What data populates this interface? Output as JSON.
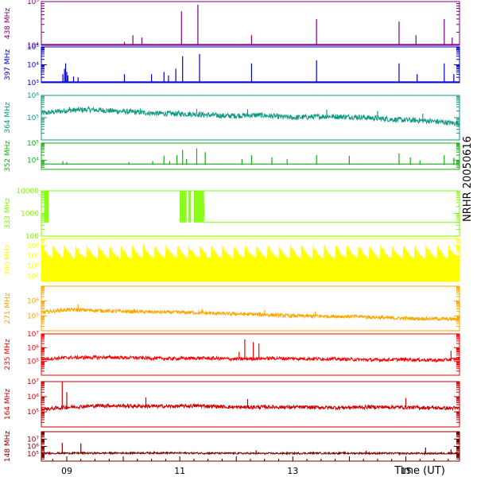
{
  "station": "NRHR 20050616",
  "time_axis": {
    "label": "Time (UT)",
    "range": [
      8.55,
      15.95
    ],
    "ticks": [
      {
        "t": 9,
        "label": "09"
      },
      {
        "t": 11,
        "label": "11"
      },
      {
        "t": 13,
        "label": "13"
      },
      {
        "t": 15,
        "label": "15"
      }
    ]
  },
  "chart_data": [
    {
      "type": "line",
      "freq_label": "438 MHz",
      "color": "#800080",
      "scale": "log",
      "ylim": [
        10000,
        100000
      ],
      "tick_labels": [
        {
          "v": 10000,
          "label": "10⁴"
        },
        {
          "v": 100000,
          "label": "10⁵"
        }
      ],
      "baseline": 10000,
      "spikes": [
        [
          10.02,
          12000
        ],
        [
          10.17,
          17000
        ],
        [
          10.33,
          15000
        ],
        [
          11.03,
          60000
        ],
        [
          11.32,
          85000
        ],
        [
          12.27,
          17000
        ],
        [
          13.42,
          40000
        ],
        [
          14.88,
          35000
        ],
        [
          15.18,
          17000
        ],
        [
          15.68,
          40000
        ],
        [
          15.82,
          15000
        ]
      ]
    },
    {
      "type": "line",
      "freq_label": "397 MHz",
      "color": "#0000cd",
      "scale": "log",
      "ylim": [
        1000,
        100000
      ],
      "tick_labels": [
        {
          "v": 1000,
          "label": "10³"
        },
        {
          "v": 10000,
          "label": "10⁴"
        },
        {
          "v": 100000,
          "label": "10⁵"
        }
      ],
      "baseline": 1000,
      "spikes": [
        [
          8.93,
          3000
        ],
        [
          8.96,
          6000
        ],
        [
          8.98,
          12000
        ],
        [
          9.0,
          4000
        ],
        [
          9.02,
          2500
        ],
        [
          9.12,
          2200
        ],
        [
          9.2,
          2000
        ],
        [
          10.02,
          3000
        ],
        [
          10.5,
          3000
        ],
        [
          10.72,
          4000
        ],
        [
          10.8,
          2500
        ],
        [
          10.93,
          6000
        ],
        [
          11.05,
          30000
        ],
        [
          11.35,
          40000
        ],
        [
          12.27,
          12000
        ],
        [
          13.42,
          18000
        ],
        [
          14.88,
          12000
        ],
        [
          15.2,
          3000
        ],
        [
          15.68,
          12000
        ],
        [
          15.85,
          3000
        ]
      ]
    },
    {
      "type": "line",
      "freq_label": "364 MHz",
      "color": "#0e9a83",
      "scale": "log",
      "ylim": [
        10000,
        1000000
      ],
      "tick_labels": [
        {
          "v": 100000,
          "label": "10⁵"
        },
        {
          "v": 1000000,
          "label": "10⁶"
        }
      ],
      "series": [
        {
          "x": [
            8.6,
            9.0,
            9.4,
            10.0,
            10.6,
            11.2,
            11.8,
            12.4,
            13.0,
            13.6,
            14.2,
            14.8,
            15.4,
            15.9
          ],
          "y": [
            160000,
            210000,
            230000,
            190000,
            155000,
            145000,
            120000,
            130000,
            100000,
            115000,
            105000,
            82000,
            72000,
            55000
          ]
        }
      ],
      "spikes": [
        [
          9.05,
          300000
        ],
        [
          9.6,
          280000
        ],
        [
          10.3,
          260000
        ],
        [
          11.3,
          250000
        ],
        [
          12.2,
          240000
        ],
        [
          13.6,
          230000
        ],
        [
          14.5,
          200000
        ],
        [
          15.3,
          150000
        ]
      ]
    },
    {
      "type": "line",
      "freq_label": "352 MHz",
      "color": "#10b010",
      "scale": "log",
      "ylim": [
        3000,
        100000
      ],
      "tick_labels": [
        {
          "v": 10000,
          "label": "10⁴"
        },
        {
          "v": 100000,
          "label": "10⁵"
        }
      ],
      "baseline": 5500,
      "spikes": [
        [
          8.93,
          9000
        ],
        [
          9.0,
          8000
        ],
        [
          10.1,
          8000
        ],
        [
          10.52,
          9000
        ],
        [
          10.72,
          18000
        ],
        [
          10.82,
          9000
        ],
        [
          10.95,
          20000
        ],
        [
          11.05,
          40000
        ],
        [
          11.12,
          12000
        ],
        [
          11.3,
          50000
        ],
        [
          11.45,
          30000
        ],
        [
          12.1,
          12000
        ],
        [
          12.27,
          20000
        ],
        [
          12.63,
          15000
        ],
        [
          12.9,
          12000
        ],
        [
          13.42,
          20000
        ],
        [
          14.0,
          18000
        ],
        [
          14.88,
          25000
        ],
        [
          15.08,
          15000
        ],
        [
          15.25,
          10000
        ],
        [
          15.68,
          20000
        ],
        [
          15.85,
          14000
        ]
      ]
    },
    {
      "type": "line",
      "freq_label": "333 MHz",
      "color": "#7cfc00",
      "scale": "log",
      "ylim": [
        100,
        10000
      ],
      "tick_labels": [
        {
          "v": 100,
          "label": "100"
        },
        {
          "v": 1000,
          "label": "1000"
        },
        {
          "v": 10000,
          "label": "10000"
        }
      ],
      "series": [
        {
          "x": [
            8.6,
            11.42,
            11.43,
            15.92
          ],
          "y": [
            10000,
            10000,
            400,
            400
          ]
        }
      ],
      "blocks": [
        [
          8.6,
          8.68
        ],
        [
          11.0,
          11.12
        ],
        [
          11.15,
          11.2
        ],
        [
          11.25,
          11.42
        ]
      ]
    },
    {
      "type": "area",
      "freq_label": "300 MHz",
      "color": "#ffff00",
      "scale": "log",
      "ylim": [
        30000,
        500000000
      ],
      "tick_labels": [
        {
          "v": 100000,
          "label": "10⁵"
        },
        {
          "v": 1000000,
          "label": "10⁶"
        },
        {
          "v": 10000000,
          "label": "10⁷"
        },
        {
          "v": 100000000,
          "label": "10⁸"
        }
      ],
      "band": {
        "low": 150000,
        "high": 200000000,
        "period_h": 0.2
      }
    },
    {
      "type": "line",
      "freq_label": "271 MHz",
      "color": "#ffa500",
      "scale": "log",
      "ylim": [
        10000,
        10000000
      ],
      "tick_labels": [
        {
          "v": 100000,
          "label": "10⁵"
        },
        {
          "v": 1000000,
          "label": "10⁶"
        }
      ],
      "series": [
        {
          "x": [
            8.6,
            9.0,
            9.4,
            10.0,
            10.6,
            11.2,
            11.8,
            12.4,
            13.0,
            13.6,
            14.2,
            14.8,
            15.4,
            15.9
          ],
          "y": [
            180000,
            260000,
            240000,
            200000,
            180000,
            170000,
            140000,
            125000,
            100000,
            95000,
            90000,
            70000,
            65000,
            60000
          ]
        }
      ],
      "spikes": [
        [
          9.2,
          600000
        ],
        [
          10.2,
          300000
        ],
        [
          11.4,
          280000
        ],
        [
          12.5,
          250000
        ],
        [
          13.4,
          200000
        ]
      ]
    },
    {
      "type": "line",
      "freq_label": "235 MHz",
      "color": "#ff0000",
      "scale": "log",
      "ylim": [
        10000,
        10000000
      ],
      "tick_labels": [
        {
          "v": 100000,
          "label": "10⁵"
        },
        {
          "v": 1000000,
          "label": "10⁶"
        },
        {
          "v": 10000000,
          "label": "10⁷"
        }
      ],
      "series": [
        {
          "x": [
            8.6,
            9.0,
            9.6,
            10.2,
            10.8,
            11.4,
            12.0,
            12.6,
            13.2,
            13.8,
            14.4,
            15.0,
            15.6,
            15.9
          ],
          "y": [
            150000,
            190000,
            200000,
            185000,
            160000,
            175000,
            150000,
            170000,
            160000,
            150000,
            130000,
            140000,
            120000,
            150000
          ]
        }
      ],
      "spikes": [
        [
          12.15,
          4000000
        ],
        [
          12.3,
          2500000
        ],
        [
          12.4,
          2000000
        ],
        [
          12.05,
          500000
        ],
        [
          15.8,
          600000
        ]
      ]
    },
    {
      "type": "line",
      "freq_label": "164 MHz",
      "color": "#cc0000",
      "scale": "log",
      "ylim": [
        10000,
        10000000
      ],
      "tick_labels": [
        {
          "v": 100000,
          "label": "10⁵"
        },
        {
          "v": 1000000,
          "label": "10⁶"
        },
        {
          "v": 10000000,
          "label": "10⁷"
        }
      ],
      "series": [
        {
          "x": [
            8.6,
            9.0,
            9.6,
            10.2,
            10.8,
            11.4,
            12.0,
            12.6,
            13.2,
            13.8,
            14.4,
            15.0,
            15.6,
            15.9
          ],
          "y": [
            150000,
            200000,
            260000,
            240000,
            230000,
            250000,
            200000,
            210000,
            200000,
            190000,
            210000,
            200000,
            180000,
            170000
          ]
        }
      ],
      "spikes": [
        [
          8.92,
          10000000
        ],
        [
          9.0,
          2000000
        ],
        [
          10.4,
          900000
        ],
        [
          12.2,
          700000
        ],
        [
          15.0,
          800000
        ]
      ]
    },
    {
      "type": "line",
      "freq_label": "148 MHz",
      "color": "#800000",
      "scale": "log",
      "ylim": [
        10000,
        100000000
      ],
      "tick_labels": [
        {
          "v": 100000,
          "label": "10⁵"
        },
        {
          "v": 1000000,
          "label": "10⁶"
        },
        {
          "v": 10000000,
          "label": "10⁷"
        }
      ],
      "series": [
        {
          "x": [
            8.6,
            9.5,
            10.5,
            11.5,
            12.5,
            13.5,
            14.5,
            15.5,
            15.9
          ],
          "y": [
            120000,
            120000,
            130000,
            120000,
            110000,
            120000,
            115000,
            110000,
            120000
          ]
        }
      ],
      "spikes": [
        [
          8.92,
          3000000
        ],
        [
          9.25,
          2500000
        ],
        [
          12.35,
          300000
        ],
        [
          14.3,
          250000
        ],
        [
          15.35,
          700000
        ],
        [
          15.8,
          400000
        ]
      ]
    }
  ]
}
